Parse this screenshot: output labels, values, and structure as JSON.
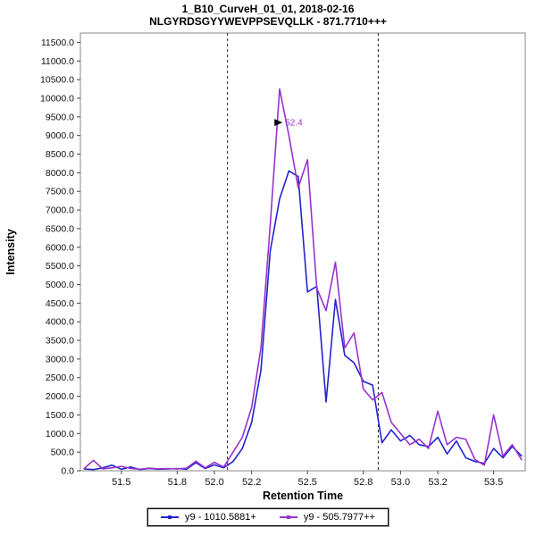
{
  "chart_data": {
    "type": "line",
    "title": "1_B10_CurveH_01_01, 2018-02-16",
    "subtitle": "NLGYRDSGYYWEVPPSEVQLLK - 871.7710+++",
    "xlabel": "Retention Time",
    "ylabel": "Intensity",
    "xlim": [
      51.28,
      53.67
    ],
    "ylim": [
      0,
      11750
    ],
    "x_ticks": [
      51.5,
      51.8,
      52.0,
      52.2,
      52.5,
      52.8,
      53.0,
      53.2,
      53.5
    ],
    "y_tick_step": 500,
    "y_tick_max": 11500,
    "grid": false,
    "legend_position": "bottom-center",
    "boundaries": [
      52.07,
      52.88
    ],
    "annotation": {
      "text": "52.4",
      "x": 52.38,
      "y": 9350,
      "color": "#9933CC"
    },
    "x": [
      51.3,
      51.35,
      51.4,
      51.45,
      51.5,
      51.55,
      51.6,
      51.65,
      51.7,
      51.75,
      51.8,
      51.85,
      51.9,
      51.95,
      52.0,
      52.05,
      52.1,
      52.15,
      52.2,
      52.25,
      52.3,
      52.35,
      52.4,
      52.45,
      52.5,
      52.55,
      52.6,
      52.65,
      52.7,
      52.75,
      52.8,
      52.85,
      52.9,
      52.95,
      53.0,
      53.05,
      53.1,
      53.15,
      53.2,
      53.25,
      53.3,
      53.35,
      53.4,
      53.45,
      53.5,
      53.55,
      53.6,
      53.65
    ],
    "series": [
      {
        "name": "y9 - 1010.5881+",
        "color": "#2323CC",
        "values": [
          50,
          30,
          80,
          150,
          40,
          100,
          30,
          60,
          40,
          50,
          60,
          40,
          220,
          60,
          160,
          80,
          250,
          600,
          1300,
          2700,
          5900,
          7300,
          8050,
          7900,
          4800,
          4950,
          1850,
          4600,
          3100,
          2900,
          2400,
          2300,
          750,
          1100,
          800,
          950,
          700,
          650,
          900,
          450,
          800,
          350,
          250,
          200,
          600,
          350,
          650,
          400
        ]
      },
      {
        "name": "y9 - 505.7977++",
        "color": "#9933CC",
        "values": [
          60,
          280,
          50,
          80,
          120,
          60,
          40,
          70,
          50,
          60,
          50,
          70,
          260,
          80,
          230,
          100,
          500,
          900,
          1700,
          3300,
          6600,
          10250,
          9000,
          7600,
          8350,
          4900,
          4300,
          5600,
          3300,
          3700,
          2200,
          1900,
          2100,
          1300,
          1000,
          700,
          850,
          600,
          1600,
          700,
          900,
          850,
          300,
          150,
          1500,
          400,
          700,
          300
        ]
      }
    ]
  }
}
